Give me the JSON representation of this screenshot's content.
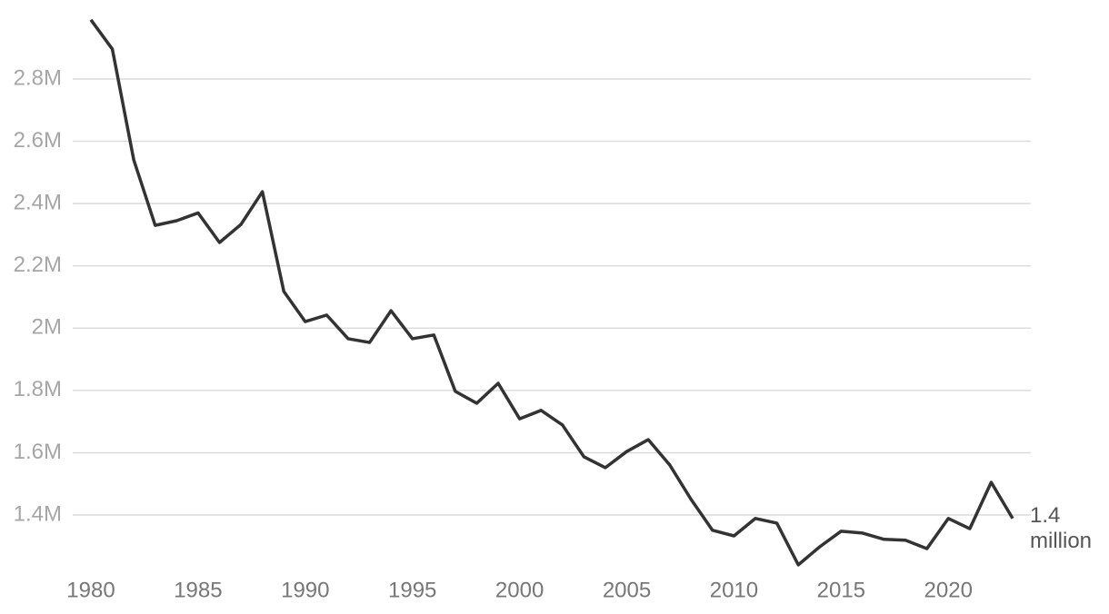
{
  "chart_data": {
    "type": "line",
    "x": [
      1980,
      1981,
      1982,
      1983,
      1984,
      1985,
      1986,
      1987,
      1988,
      1989,
      1990,
      1991,
      1992,
      1993,
      1994,
      1995,
      1996,
      1997,
      1998,
      1999,
      2000,
      2001,
      2002,
      2003,
      2004,
      2005,
      2006,
      2007,
      2008,
      2009,
      2010,
      2011,
      2012,
      2013,
      2014,
      2015,
      2016,
      2017,
      2018,
      2019,
      2020,
      2021,
      2022,
      2023
    ],
    "series": [
      {
        "color": "#333333",
        "values": [
          2990000,
          2896000,
          2540000,
          2330000,
          2345000,
          2370000,
          2275000,
          2333000,
          2438000,
          2118000,
          2021000,
          2042000,
          1966000,
          1954000,
          2056000,
          1966000,
          1978000,
          1797000,
          1759000,
          1823000,
          1709000,
          1736000,
          1689000,
          1587000,
          1552000,
          1604000,
          1642000,
          1561000,
          1450000,
          1351000,
          1333000,
          1389000,
          1374000,
          1240000,
          1298000,
          1348000,
          1342000,
          1322000,
          1319000,
          1292000,
          1389000,
          1356000,
          1505000,
          1389000
        ]
      }
    ],
    "annotation": [
      "1.4",
      "million"
    ],
    "xlim": [
      1980,
      2023
    ],
    "xticks": [
      1980,
      1985,
      1990,
      1995,
      2000,
      2005,
      2010,
      2015,
      2020
    ],
    "ylim": [
      1200000,
      3000000
    ],
    "yticks": [
      {
        "value": 1400000,
        "label": "1.4M"
      },
      {
        "value": 1600000,
        "label": "1.6M"
      },
      {
        "value": 1800000,
        "label": "1.8M"
      },
      {
        "value": 2000000,
        "label": "2M"
      },
      {
        "value": 2200000,
        "label": "2.2M"
      },
      {
        "value": 2400000,
        "label": "2.4M"
      },
      {
        "value": 2600000,
        "label": "2.6M"
      },
      {
        "value": 2800000,
        "label": "2.8M"
      }
    ],
    "grid": true
  }
}
